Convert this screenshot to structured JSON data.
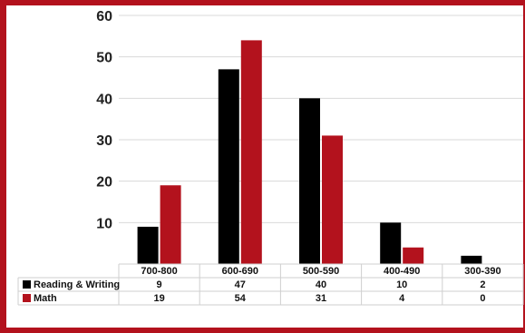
{
  "chart_data": {
    "type": "bar",
    "categories": [
      "700-800",
      "600-690",
      "500-590",
      "400-490",
      "300-390"
    ],
    "series": [
      {
        "name": "Reading & Writing",
        "values": [
          9,
          47,
          40,
          10,
          2
        ],
        "color": "#000000"
      },
      {
        "name": "Math",
        "values": [
          19,
          54,
          31,
          4,
          0
        ],
        "color": "#b3121d"
      }
    ],
    "yticks": [
      "10",
      "20",
      "30",
      "40",
      "50",
      "60"
    ],
    "ylim": [
      0,
      60
    ],
    "grid": true,
    "legend": "data-table-left",
    "title": "",
    "xlabel": "",
    "ylabel": ""
  },
  "colors": {
    "frame": "#b3121d",
    "grid": "#d9d9d9"
  }
}
